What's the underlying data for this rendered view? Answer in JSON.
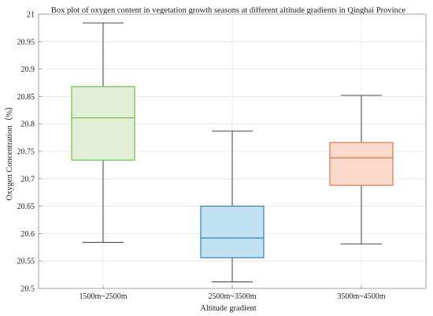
{
  "chart_data": {
    "type": "box",
    "title": "Box plot of oxygen content in vegetation growth seasons at different altitude gradients in Qinghai Province",
    "xlabel": "Altitude gradient",
    "ylabel": "Oxygen Concentration（%）",
    "ylim": [
      20.5,
      21
    ],
    "yticks": [
      20.5,
      20.55,
      20.6,
      20.65,
      20.7,
      20.75,
      20.8,
      20.85,
      20.9,
      20.95,
      21
    ],
    "ytick_labels": [
      "20.5",
      "20.55",
      "20.6",
      "20.65",
      "20.7",
      "20.75",
      "20.8",
      "20.85",
      "20.9",
      "20.95",
      "21"
    ],
    "grid": true,
    "categories": [
      "1500m~2500m",
      "2500m~3500m",
      "3500m~4500m"
    ],
    "boxes": [
      {
        "category": "1500m~2500m",
        "whisker_low": 20.584,
        "q1": 20.734,
        "median": 20.811,
        "q3": 20.868,
        "whisker_high": 20.984,
        "stroke": "#6bbf47",
        "fill": "#e2f0d7"
      },
      {
        "category": "2500m~3500m",
        "whisker_low": 20.512,
        "q1": 20.556,
        "median": 20.592,
        "q3": 20.65,
        "whisker_high": 20.787,
        "stroke": "#2f86b9",
        "fill": "#c2e1f3"
      },
      {
        "category": "3500m~4500m",
        "whisker_low": 20.581,
        "q1": 20.688,
        "median": 20.738,
        "q3": 20.766,
        "whisker_high": 20.852,
        "stroke": "#e2764e",
        "fill": "#fbd9cb"
      }
    ]
  }
}
